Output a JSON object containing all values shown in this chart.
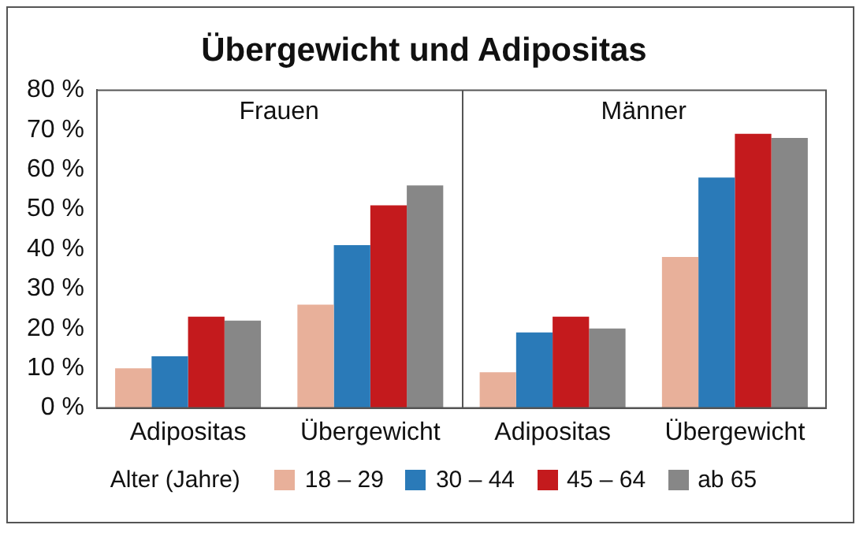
{
  "chart_data": {
    "type": "bar",
    "title": "Übergewicht und Adipositas",
    "legend_title": "Alter (Jahre)",
    "categories": [
      "Adipositas",
      "Übergewicht",
      "Adipositas",
      "Übergewicht"
    ],
    "series": [
      {
        "name": "18 – 29",
        "color": "#e8b09a",
        "values": [
          10,
          26,
          9,
          38
        ]
      },
      {
        "name": "30 – 44",
        "color": "#2a7ab8",
        "values": [
          13,
          41,
          19,
          58
        ]
      },
      {
        "name": "45 – 64",
        "color": "#c41a1d",
        "values": [
          23,
          51,
          23,
          69
        ]
      },
      {
        "name": "ab 65",
        "color": "#878787",
        "values": [
          22,
          56,
          20,
          68
        ]
      }
    ],
    "ylim": [
      0,
      80
    ],
    "yticks": [
      {
        "value": 0,
        "label": "0 %"
      },
      {
        "value": 10,
        "label": "10 %"
      },
      {
        "value": 20,
        "label": "20 %"
      },
      {
        "value": 30,
        "label": "30 %"
      },
      {
        "value": 40,
        "label": "40 %"
      },
      {
        "value": 50,
        "label": "50 %"
      },
      {
        "value": 60,
        "label": "60 %"
      },
      {
        "value": 70,
        "label": "70 %"
      },
      {
        "value": 80,
        "label": "80 %"
      }
    ],
    "annotations": [
      "Frauen",
      "Männer"
    ],
    "grid": false,
    "legend": "bottom"
  }
}
